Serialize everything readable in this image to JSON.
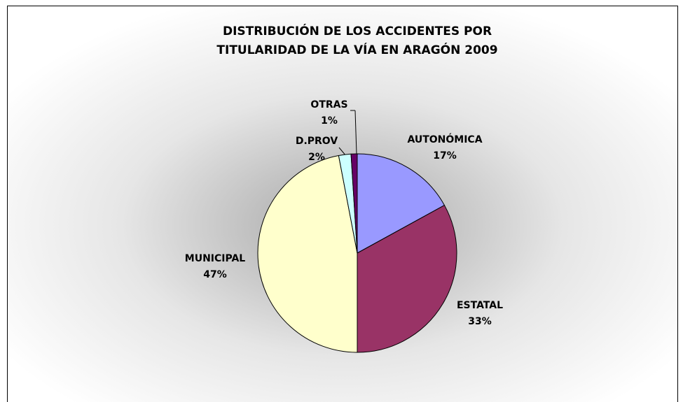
{
  "chart_data": {
    "type": "pie",
    "title": [
      "DISTRIBUCIÓN DE LOS ACCIDENTES POR",
      "TITULARIDAD DE LA VÍA EN ARAGÓN 2009"
    ],
    "categories": [
      "AUTONÓMICA",
      "ESTATAL",
      "MUNICIPAL",
      "D.PROV",
      "OTRAS"
    ],
    "values": [
      17,
      33,
      47,
      2,
      1
    ],
    "value_labels": [
      "17%",
      "33%",
      "47%",
      "2%",
      "1%"
    ],
    "colors": [
      "#9999ff",
      "#993366",
      "#ffffcc",
      "#ccffff",
      "#660066"
    ]
  }
}
